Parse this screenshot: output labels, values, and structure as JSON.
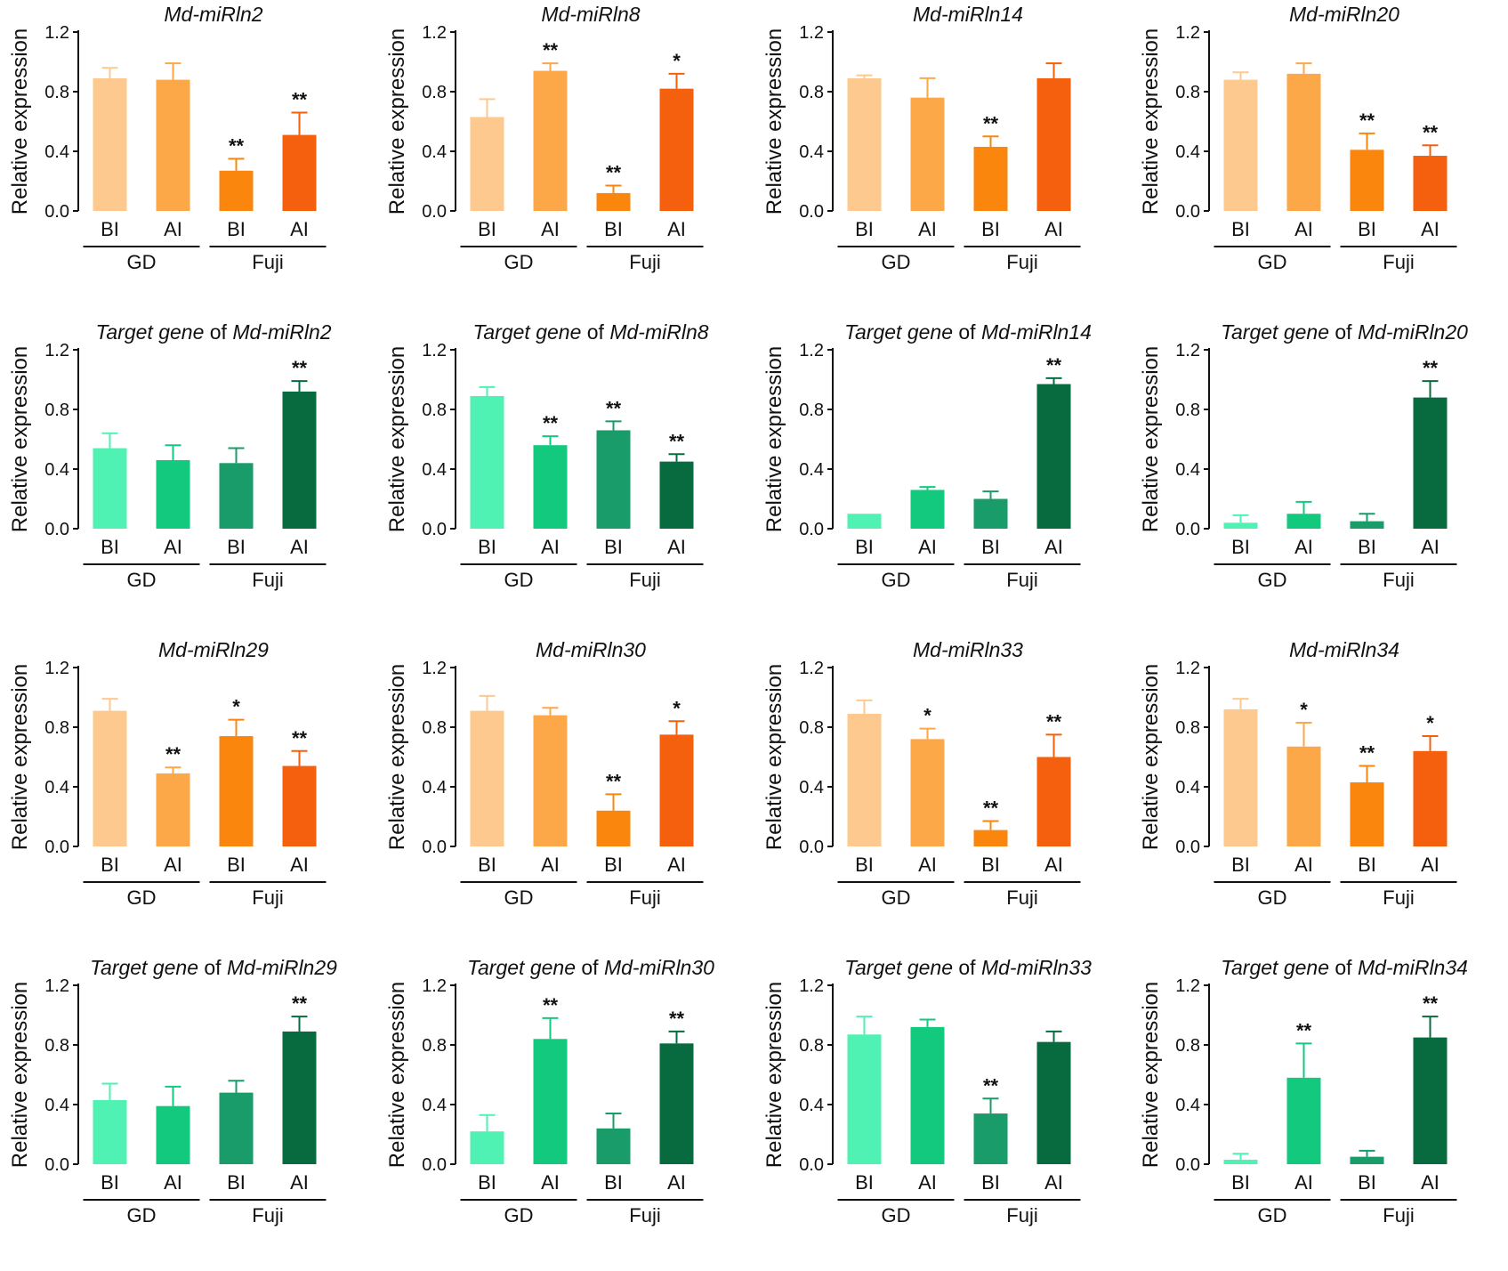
{
  "figure": {
    "y_axis_label": "Relative expression",
    "group_labels": [
      "GD",
      "Fuji"
    ],
    "orange_colors": [
      "#FDC98F",
      "#FCA748",
      "#FB860E",
      "#F4600E"
    ],
    "green_colors": [
      "#4FF2B2",
      "#12C97D",
      "#199C69",
      "#086B3F"
    ]
  },
  "chart_data": [
    {
      "type": "bar",
      "title_italic": "Md-miRln2",
      "title_plain": "",
      "title_italic2": "",
      "palette": "orange",
      "categories": [
        "BI",
        "AI",
        "BI",
        "AI"
      ],
      "groups": [
        "GD",
        "GD",
        "Fuji",
        "Fuji"
      ],
      "values": [
        0.89,
        0.88,
        0.27,
        0.51
      ],
      "errors": [
        0.07,
        0.11,
        0.08,
        0.15
      ],
      "significance": [
        "",
        "",
        "**",
        "**"
      ],
      "ylabel": "Relative expression",
      "ylim": [
        0,
        1.2
      ],
      "yticks": [
        "0.0",
        "0.4",
        "0.8",
        "1.2"
      ]
    },
    {
      "type": "bar",
      "title_italic": "Md-miRln8",
      "title_plain": "",
      "title_italic2": "",
      "palette": "orange",
      "categories": [
        "BI",
        "AI",
        "BI",
        "AI"
      ],
      "groups": [
        "GD",
        "GD",
        "Fuji",
        "Fuji"
      ],
      "values": [
        0.63,
        0.94,
        0.12,
        0.82
      ],
      "errors": [
        0.12,
        0.05,
        0.05,
        0.1
      ],
      "significance": [
        "",
        "**",
        "**",
        "*"
      ],
      "ylabel": "Relative expression",
      "ylim": [
        0,
        1.2
      ],
      "yticks": [
        "0.0",
        "0.4",
        "0.8",
        "1.2"
      ]
    },
    {
      "type": "bar",
      "title_italic": "Md-miRln14",
      "title_plain": "",
      "title_italic2": "",
      "palette": "orange",
      "categories": [
        "BI",
        "AI",
        "BI",
        "AI"
      ],
      "groups": [
        "GD",
        "GD",
        "Fuji",
        "Fuji"
      ],
      "values": [
        0.89,
        0.76,
        0.43,
        0.89
      ],
      "errors": [
        0.02,
        0.13,
        0.07,
        0.1
      ],
      "significance": [
        "",
        "",
        "**",
        ""
      ],
      "ylabel": "Relative expression",
      "ylim": [
        0,
        1.2
      ],
      "yticks": [
        "0.0",
        "0.4",
        "0.8",
        "1.2"
      ]
    },
    {
      "type": "bar",
      "title_italic": "Md-miRln20",
      "title_plain": "",
      "title_italic2": "",
      "palette": "orange",
      "categories": [
        "BI",
        "AI",
        "BI",
        "AI"
      ],
      "groups": [
        "GD",
        "GD",
        "Fuji",
        "Fuji"
      ],
      "values": [
        0.88,
        0.92,
        0.41,
        0.37
      ],
      "errors": [
        0.05,
        0.07,
        0.11,
        0.07
      ],
      "significance": [
        "",
        "",
        "**",
        "**"
      ],
      "ylabel": "Relative expression",
      "ylim": [
        0,
        1.2
      ],
      "yticks": [
        "0.0",
        "0.4",
        "0.8",
        "1.2"
      ]
    },
    {
      "type": "bar",
      "title_italic": "Target gene",
      "title_plain": "of",
      "title_italic2": "Md-miRln2",
      "palette": "green",
      "categories": [
        "BI",
        "AI",
        "BI",
        "AI"
      ],
      "groups": [
        "GD",
        "GD",
        "Fuji",
        "Fuji"
      ],
      "values": [
        0.54,
        0.46,
        0.44,
        0.92
      ],
      "errors": [
        0.1,
        0.1,
        0.1,
        0.07
      ],
      "significance": [
        "",
        "",
        "",
        "**"
      ],
      "ylabel": "Relative expression",
      "ylim": [
        0,
        1.2
      ],
      "yticks": [
        "0.0",
        "0.4",
        "0.8",
        "1.2"
      ]
    },
    {
      "type": "bar",
      "title_italic": "Target gene",
      "title_plain": "of",
      "title_italic2": "Md-miRln8",
      "palette": "green",
      "categories": [
        "BI",
        "AI",
        "BI",
        "AI"
      ],
      "groups": [
        "GD",
        "GD",
        "Fuji",
        "Fuji"
      ],
      "values": [
        0.89,
        0.56,
        0.66,
        0.45
      ],
      "errors": [
        0.06,
        0.06,
        0.06,
        0.05
      ],
      "significance": [
        "",
        "**",
        "**",
        "**"
      ],
      "ylabel": "Relative expression",
      "ylim": [
        0,
        1.2
      ],
      "yticks": [
        "0.0",
        "0.4",
        "0.8",
        "1.2"
      ]
    },
    {
      "type": "bar",
      "title_italic": "Target gene",
      "title_plain": "of",
      "title_italic2": "Md-miRln14",
      "palette": "green",
      "categories": [
        "BI",
        "AI",
        "BI",
        "AI"
      ],
      "groups": [
        "GD",
        "GD",
        "Fuji",
        "Fuji"
      ],
      "values": [
        0.1,
        0.26,
        0.2,
        0.97
      ],
      "errors": [
        0.0,
        0.02,
        0.05,
        0.04
      ],
      "significance": [
        "",
        "",
        "",
        "**"
      ],
      "ylabel": "Relative expression",
      "ylim": [
        0,
        1.2
      ],
      "yticks": [
        "0.0",
        "0.4",
        "0.8",
        "1.2"
      ]
    },
    {
      "type": "bar",
      "title_italic": "Target gene",
      "title_plain": "of",
      "title_italic2": "Md-miRln20",
      "palette": "green",
      "categories": [
        "BI",
        "AI",
        "BI",
        "AI"
      ],
      "groups": [
        "GD",
        "GD",
        "Fuji",
        "Fuji"
      ],
      "values": [
        0.04,
        0.1,
        0.05,
        0.88
      ],
      "errors": [
        0.05,
        0.08,
        0.05,
        0.11
      ],
      "significance": [
        "",
        "",
        "",
        "**"
      ],
      "ylabel": "Relative expression",
      "ylim": [
        0,
        1.2
      ],
      "yticks": [
        "0.0",
        "0.4",
        "0.8",
        "1.2"
      ]
    },
    {
      "type": "bar",
      "title_italic": "Md-miRln29",
      "title_plain": "",
      "title_italic2": "",
      "palette": "orange",
      "categories": [
        "BI",
        "AI",
        "BI",
        "AI"
      ],
      "groups": [
        "GD",
        "GD",
        "Fuji",
        "Fuji"
      ],
      "values": [
        0.91,
        0.49,
        0.74,
        0.54
      ],
      "errors": [
        0.08,
        0.04,
        0.11,
        0.1
      ],
      "significance": [
        "",
        "**",
        "*",
        "**"
      ],
      "ylabel": "Relative expression",
      "ylim": [
        0,
        1.2
      ],
      "yticks": [
        "0.0",
        "0.4",
        "0.8",
        "1.2"
      ]
    },
    {
      "type": "bar",
      "title_italic": "Md-miRln30",
      "title_plain": "",
      "title_italic2": "",
      "palette": "orange",
      "categories": [
        "BI",
        "AI",
        "BI",
        "AI"
      ],
      "groups": [
        "GD",
        "GD",
        "Fuji",
        "Fuji"
      ],
      "values": [
        0.91,
        0.88,
        0.24,
        0.75
      ],
      "errors": [
        0.1,
        0.05,
        0.11,
        0.09
      ],
      "significance": [
        "",
        "",
        "**",
        "*"
      ],
      "ylabel": "Relative expression",
      "ylim": [
        0,
        1.2
      ],
      "yticks": [
        "0.0",
        "0.4",
        "0.8",
        "1.2"
      ]
    },
    {
      "type": "bar",
      "title_italic": "Md-miRln33",
      "title_plain": "",
      "title_italic2": "",
      "palette": "orange",
      "categories": [
        "BI",
        "AI",
        "BI",
        "AI"
      ],
      "groups": [
        "GD",
        "GD",
        "Fuji",
        "Fuji"
      ],
      "values": [
        0.89,
        0.72,
        0.11,
        0.6
      ],
      "errors": [
        0.09,
        0.07,
        0.06,
        0.15
      ],
      "significance": [
        "",
        "*",
        "**",
        "**"
      ],
      "ylabel": "Relative expression",
      "ylim": [
        0,
        1.2
      ],
      "yticks": [
        "0.0",
        "0.4",
        "0.8",
        "1.2"
      ]
    },
    {
      "type": "bar",
      "title_italic": "Md-miRln34",
      "title_plain": "",
      "title_italic2": "",
      "palette": "orange",
      "categories": [
        "BI",
        "AI",
        "BI",
        "AI"
      ],
      "groups": [
        "GD",
        "GD",
        "Fuji",
        "Fuji"
      ],
      "values": [
        0.92,
        0.67,
        0.43,
        0.64
      ],
      "errors": [
        0.07,
        0.16,
        0.11,
        0.1
      ],
      "significance": [
        "",
        "*",
        "**",
        "*"
      ],
      "ylabel": "Relative expression",
      "ylim": [
        0,
        1.2
      ],
      "yticks": [
        "0.0",
        "0.4",
        "0.8",
        "1.2"
      ]
    },
    {
      "type": "bar",
      "title_italic": "Target gene",
      "title_plain": "of",
      "title_italic2": "Md-miRln29",
      "palette": "green",
      "categories": [
        "BI",
        "AI",
        "BI",
        "AI"
      ],
      "groups": [
        "GD",
        "GD",
        "Fuji",
        "Fuji"
      ],
      "values": [
        0.43,
        0.39,
        0.48,
        0.89
      ],
      "errors": [
        0.11,
        0.13,
        0.08,
        0.1
      ],
      "significance": [
        "",
        "",
        "",
        "**"
      ],
      "ylabel": "Relative expression",
      "ylim": [
        0,
        1.2
      ],
      "yticks": [
        "0.0",
        "0.4",
        "0.8",
        "1.2"
      ]
    },
    {
      "type": "bar",
      "title_italic": "Target gene",
      "title_plain": "of",
      "title_italic2": "Md-miRln30",
      "palette": "green",
      "categories": [
        "BI",
        "AI",
        "BI",
        "AI"
      ],
      "groups": [
        "GD",
        "GD",
        "Fuji",
        "Fuji"
      ],
      "values": [
        0.22,
        0.84,
        0.24,
        0.81
      ],
      "errors": [
        0.11,
        0.14,
        0.1,
        0.08
      ],
      "significance": [
        "",
        "**",
        "",
        "**"
      ],
      "ylabel": "Relative expression",
      "ylim": [
        0,
        1.2
      ],
      "yticks": [
        "0.0",
        "0.4",
        "0.8",
        "1.2"
      ]
    },
    {
      "type": "bar",
      "title_italic": "Target gene",
      "title_plain": "of",
      "title_italic2": "Md-miRln33",
      "palette": "green",
      "categories": [
        "BI",
        "AI",
        "BI",
        "AI"
      ],
      "groups": [
        "GD",
        "GD",
        "Fuji",
        "Fuji"
      ],
      "values": [
        0.87,
        0.92,
        0.34,
        0.82
      ],
      "errors": [
        0.12,
        0.05,
        0.1,
        0.07
      ],
      "significance": [
        "",
        "",
        "**",
        ""
      ],
      "ylabel": "Relative expression",
      "ylim": [
        0,
        1.2
      ],
      "yticks": [
        "0.0",
        "0.4",
        "0.8",
        "1.2"
      ]
    },
    {
      "type": "bar",
      "title_italic": "Target gene",
      "title_plain": "of",
      "title_italic2": "Md-miRln34",
      "palette": "green",
      "categories": [
        "BI",
        "AI",
        "BI",
        "AI"
      ],
      "groups": [
        "GD",
        "GD",
        "Fuji",
        "Fuji"
      ],
      "values": [
        0.03,
        0.58,
        0.05,
        0.85
      ],
      "errors": [
        0.04,
        0.23,
        0.04,
        0.14
      ],
      "significance": [
        "",
        "**",
        "",
        "**"
      ],
      "ylabel": "Relative expression",
      "ylim": [
        0,
        1.2
      ],
      "yticks": [
        "0.0",
        "0.4",
        "0.8",
        "1.2"
      ]
    }
  ]
}
